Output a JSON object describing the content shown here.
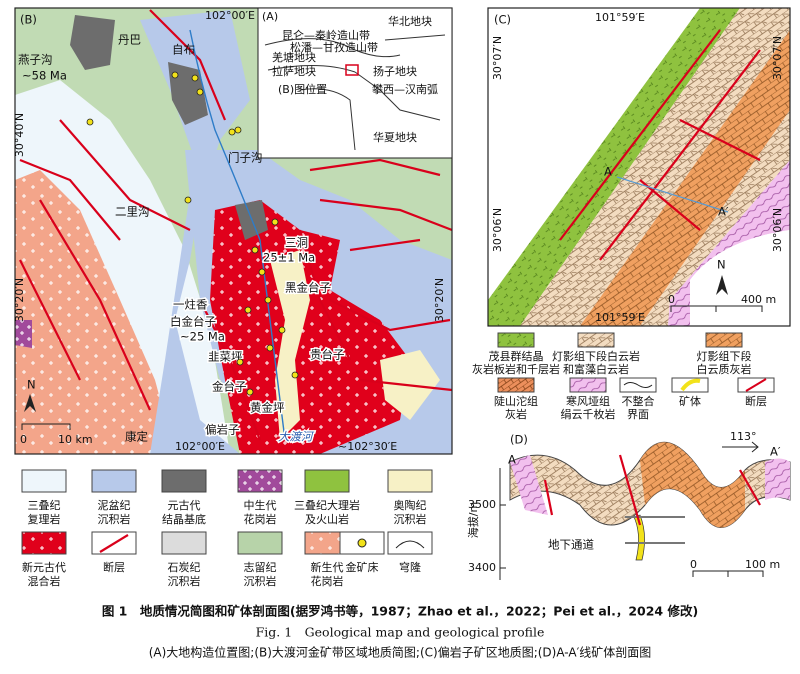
{
  "panel_b": {
    "label": "(B)",
    "lon_top": "102°00′E",
    "danba": "丹巴",
    "zibu": "自布",
    "yanzigou": "燕子沟",
    "age_yanzigou": "~58 Ma",
    "lat_40": "30°40′N",
    "menzigou": "门子沟",
    "erligou": "二里沟",
    "sandong": "三洞",
    "age_sandong": "25±1 Ma",
    "heijintaizi": "黑金台子",
    "yizhuxiang": "一炷香",
    "baijintaizi": "白金台子",
    "age_baijin": "~25 Ma",
    "lat_20_left": "30°20′N",
    "lat_20_right": "30°20′N",
    "jiucaiping": "韭菜坪",
    "guitaizi": "贵台子",
    "jintaizi": "金台子",
    "huangjinping": "黄金坪",
    "pianyanzi": "偏岩子",
    "daduhe": "大渡河",
    "kangding": "康定",
    "lon_bottom": "102°00′E",
    "lon_right": "~102°30′E",
    "north": "N",
    "scale_zero": "0",
    "scale_len": "10 km"
  },
  "panel_a": {
    "label": "(A)",
    "kunlun": "昆仑—秦岭造山带",
    "songpan": "松潘—甘孜造山带",
    "qiangtang": "羌塘地块",
    "lasa": "拉萨地块",
    "position": "(B)图位置",
    "huabei": "华北地块",
    "yangzi": "扬子地块",
    "panxi": "攀西—汉南弧",
    "huaxia": "华夏地块"
  },
  "panel_c": {
    "label": "(C)",
    "lon_top": "101°59′E",
    "lat_07_left": "30°07′N",
    "lat_07_right": "30°07′N",
    "lat_06_left": "30°06′N",
    "lat_06_right": "30°06′N",
    "a": "A",
    "a_prime": "A′",
    "north": "N",
    "scale_zero": "0",
    "scale_len": "400 m",
    "lon_bottom": "101°59′E",
    "legend": [
      [
        "茂县群结晶",
        "灰岩板岩和千层岩"
      ],
      [
        "灯影组下段白云岩",
        "和富藻白云岩"
      ],
      [
        "灯影组下段",
        "白云质灰岩"
      ],
      [
        "陡山沱组",
        "灰岩"
      ],
      [
        "寒风垭组",
        "绢云千枚岩"
      ],
      [
        "不整合",
        "界面"
      ],
      [
        "矿体"
      ],
      [
        "断层"
      ]
    ]
  },
  "panel_d": {
    "label": "(D)",
    "azimuth": "113°",
    "a": "A",
    "a_prime": "A′",
    "y_axis_label": "海拔/m",
    "yticks": [
      3500,
      3400
    ],
    "tunnel": "地下通道",
    "scale_zero": "0",
    "scale_len": "100 m"
  },
  "legend_b": [
    [
      "三叠纪",
      "复理岩"
    ],
    [
      "泥盆纪",
      "沉积岩"
    ],
    [
      "元古代",
      "结晶基底"
    ],
    [
      "中生代",
      "花岗岩"
    ],
    [
      "三叠纪大理岩",
      "及火山岩"
    ],
    [
      "奥陶纪",
      "沉积岩"
    ],
    [
      "新元古代",
      "混合岩"
    ],
    [
      "断层"
    ],
    [
      "石炭纪",
      "沉积岩"
    ],
    [
      "志留纪",
      "沉积岩"
    ],
    [
      "新生代",
      "花岗岩"
    ],
    [
      "穹隆"
    ],
    [
      "金矿床"
    ]
  ],
  "caption": {
    "zh_title": "图 1　地质情况简图和矿体剖面图(据罗鸿书等，1987；Zhao et al.，2022；Pei et al.，2024 修改)",
    "en_title": "Fig. 1　Geological map and geological profile",
    "subtitle": "(A)大地构造位置图;(B)大渡河金矿带区域地质简图;(C)偏岩子矿区地质图;(D)A-A′线矿体剖面图"
  }
}
